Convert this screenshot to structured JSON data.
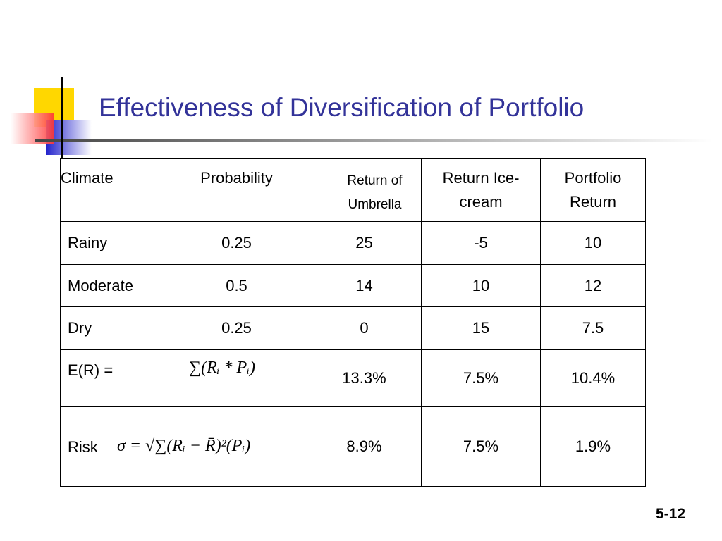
{
  "header": {
    "title": "Effectiveness of Diversification of Portfolio"
  },
  "table": {
    "columns": [
      "Climate",
      "Probability",
      "Return of Umbrella",
      "Return Ice-cream",
      "Portfolio Return"
    ],
    "rows": [
      [
        "Rainy",
        "0.25",
        "25",
        "-5",
        "10"
      ],
      [
        "Moderate",
        "0.5",
        "14",
        "10",
        "12"
      ],
      [
        "Dry",
        "0.25",
        "0",
        "15",
        "7.5"
      ]
    ],
    "expected_return": {
      "label": "E(R) =",
      "formula": "∑(Rᵢ * Pᵢ)",
      "values": [
        "13.3%",
        "7.5%",
        "10.4%"
      ]
    },
    "risk": {
      "label": "Risk",
      "formula": "σ = √∑(Rᵢ − R̄)²(Pᵢ)",
      "values": [
        "8.9%",
        "7.5%",
        "1.9%"
      ]
    }
  },
  "footer": {
    "page_number": "5-12"
  }
}
